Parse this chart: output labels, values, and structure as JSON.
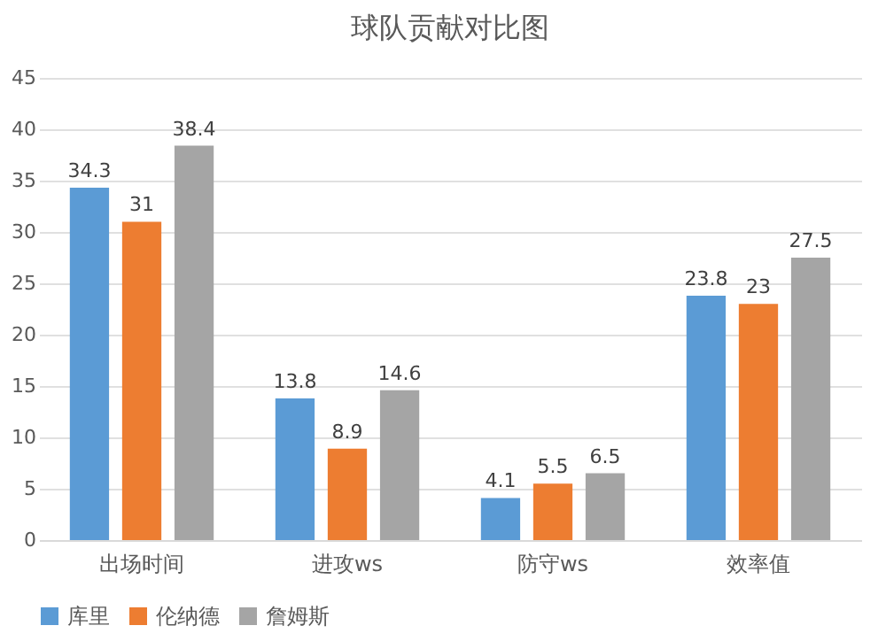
{
  "chart_data": {
    "type": "bar",
    "title": "球队贡献对比图",
    "categories": [
      "出场时间",
      "进攻ws",
      "防守ws",
      "效率值"
    ],
    "series": [
      {
        "name": "库里",
        "color": "#5b9bd5",
        "values": [
          34.3,
          13.8,
          4.1,
          23.8
        ]
      },
      {
        "name": "伦纳德",
        "color": "#ed7d31",
        "values": [
          31,
          8.9,
          5.5,
          23
        ]
      },
      {
        "name": "詹姆斯",
        "color": "#a5a5a5",
        "values": [
          38.4,
          14.6,
          6.5,
          27.5
        ]
      }
    ],
    "ylim": [
      0,
      45
    ],
    "yticks": [
      0,
      5,
      10,
      15,
      20,
      25,
      30,
      35,
      40,
      45
    ],
    "grid": "y",
    "legend": "bottom",
    "data_labels": true
  }
}
